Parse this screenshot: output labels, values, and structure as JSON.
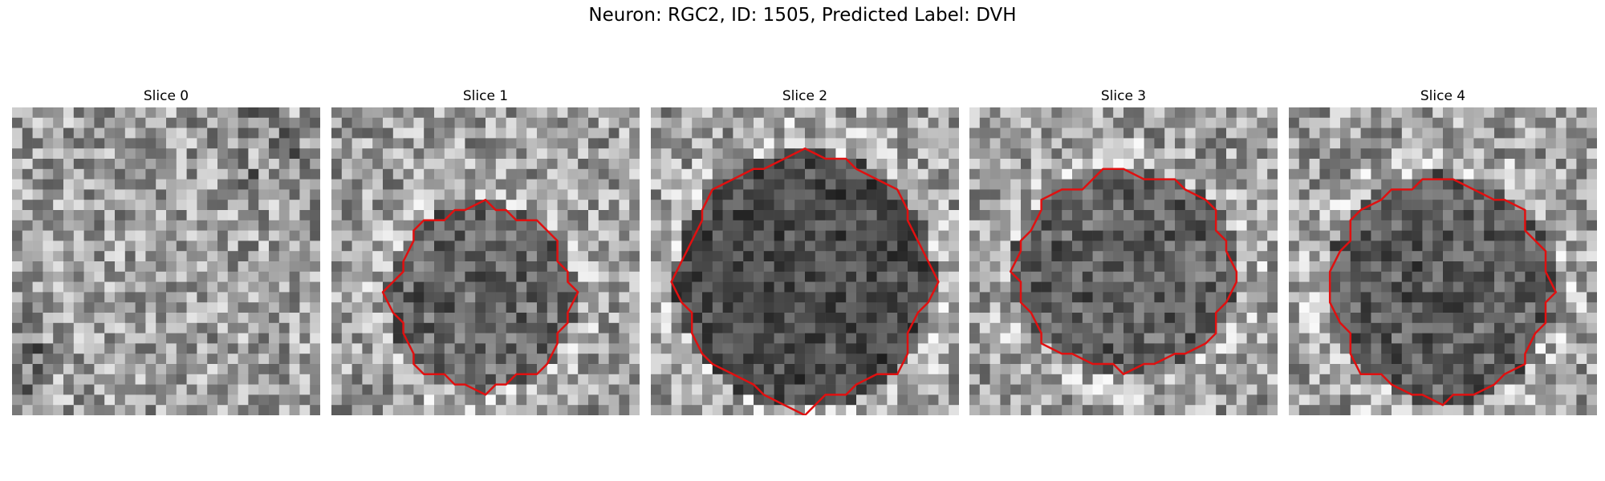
{
  "figure": {
    "title": "Neuron: RGC2, ID: 1505, Predicted Label: DVH"
  },
  "panels": [
    {
      "title": "Slice 0",
      "has_contour": false
    },
    {
      "title": "Slice 1",
      "has_contour": true
    },
    {
      "title": "Slice 2",
      "has_contour": true
    },
    {
      "title": "Slice 3",
      "has_contour": true
    },
    {
      "title": "Slice 4",
      "has_contour": true
    }
  ],
  "contour_color": "#e01010"
}
